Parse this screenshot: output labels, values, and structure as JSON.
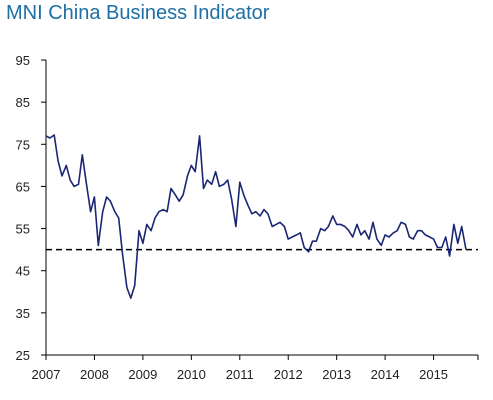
{
  "title": "MNI China Business Indicator",
  "colors": {
    "title": "#1d6fa5",
    "series": "#1a2673",
    "reference_line": "#000000",
    "axis": "#000000",
    "text": "#222222"
  },
  "chart_data": {
    "type": "line",
    "title": "MNI China Business Indicator",
    "xlabel": "",
    "ylabel": "",
    "grid": false,
    "legend": "none",
    "xlim": [
      2007.0,
      2015.917
    ],
    "ylim": [
      25,
      95
    ],
    "y_ticks": [
      25,
      35,
      45,
      55,
      65,
      75,
      85,
      95
    ],
    "x_ticks": [
      "2007",
      "2008",
      "2009",
      "2010",
      "2011",
      "2012",
      "2013",
      "2014",
      "2015"
    ],
    "reference_line": {
      "y": 50,
      "style": "dashed"
    },
    "series": [
      {
        "values": [
          [
            2007.0,
            77.0
          ],
          [
            2007.08,
            76.5
          ],
          [
            2007.17,
            77.2
          ],
          [
            2007.25,
            71.0
          ],
          [
            2007.33,
            67.5
          ],
          [
            2007.42,
            70.0
          ],
          [
            2007.5,
            66.5
          ],
          [
            2007.58,
            65.0
          ],
          [
            2007.67,
            65.5
          ],
          [
            2007.75,
            72.5
          ],
          [
            2007.83,
            66.0
          ],
          [
            2007.92,
            59.0
          ],
          [
            2008.0,
            62.5
          ],
          [
            2008.08,
            51.0
          ],
          [
            2008.17,
            59.0
          ],
          [
            2008.25,
            62.5
          ],
          [
            2008.33,
            61.5
          ],
          [
            2008.42,
            59.0
          ],
          [
            2008.5,
            57.5
          ],
          [
            2008.58,
            49.0
          ],
          [
            2008.67,
            41.0
          ],
          [
            2008.75,
            38.5
          ],
          [
            2008.83,
            41.5
          ],
          [
            2008.92,
            54.5
          ],
          [
            2009.0,
            51.5
          ],
          [
            2009.08,
            56.0
          ],
          [
            2009.17,
            54.5
          ],
          [
            2009.25,
            57.5
          ],
          [
            2009.33,
            59.0
          ],
          [
            2009.42,
            59.5
          ],
          [
            2009.5,
            59.0
          ],
          [
            2009.58,
            64.5
          ],
          [
            2009.67,
            63.0
          ],
          [
            2009.75,
            61.5
          ],
          [
            2009.83,
            63.0
          ],
          [
            2009.92,
            67.5
          ],
          [
            2010.0,
            70.0
          ],
          [
            2010.08,
            68.5
          ],
          [
            2010.17,
            77.0
          ],
          [
            2010.25,
            64.5
          ],
          [
            2010.33,
            66.5
          ],
          [
            2010.42,
            65.5
          ],
          [
            2010.5,
            68.5
          ],
          [
            2010.58,
            65.0
          ],
          [
            2010.67,
            65.5
          ],
          [
            2010.75,
            66.5
          ],
          [
            2010.83,
            62.0
          ],
          [
            2010.92,
            55.5
          ],
          [
            2011.0,
            66.0
          ],
          [
            2011.08,
            63.0
          ],
          [
            2011.17,
            60.5
          ],
          [
            2011.25,
            58.5
          ],
          [
            2011.33,
            59.0
          ],
          [
            2011.42,
            58.0
          ],
          [
            2011.5,
            59.5
          ],
          [
            2011.58,
            58.5
          ],
          [
            2011.67,
            55.5
          ],
          [
            2011.75,
            56.0
          ],
          [
            2011.83,
            56.5
          ],
          [
            2011.92,
            55.5
          ],
          [
            2012.0,
            52.5
          ],
          [
            2012.08,
            53.0
          ],
          [
            2012.17,
            53.5
          ],
          [
            2012.25,
            54.0
          ],
          [
            2012.33,
            50.5
          ],
          [
            2012.42,
            49.5
          ],
          [
            2012.5,
            52.0
          ],
          [
            2012.58,
            52.0
          ],
          [
            2012.67,
            55.0
          ],
          [
            2012.75,
            54.5
          ],
          [
            2012.83,
            55.5
          ],
          [
            2012.92,
            58.0
          ],
          [
            2013.0,
            56.0
          ],
          [
            2013.08,
            56.0
          ],
          [
            2013.17,
            55.5
          ],
          [
            2013.25,
            54.5
          ],
          [
            2013.33,
            53.0
          ],
          [
            2013.42,
            56.0
          ],
          [
            2013.5,
            53.5
          ],
          [
            2013.58,
            54.5
          ],
          [
            2013.67,
            52.5
          ],
          [
            2013.75,
            56.5
          ],
          [
            2013.83,
            52.5
          ],
          [
            2013.92,
            51.0
          ],
          [
            2014.0,
            53.5
          ],
          [
            2014.08,
            53.0
          ],
          [
            2014.17,
            54.0
          ],
          [
            2014.25,
            54.5
          ],
          [
            2014.33,
            56.5
          ],
          [
            2014.42,
            56.0
          ],
          [
            2014.5,
            53.0
          ],
          [
            2014.58,
            52.5
          ],
          [
            2014.67,
            54.5
          ],
          [
            2014.75,
            54.5
          ],
          [
            2014.83,
            53.5
          ],
          [
            2014.92,
            53.0
          ],
          [
            2015.0,
            52.5
          ],
          [
            2015.08,
            50.5
          ],
          [
            2015.17,
            50.5
          ],
          [
            2015.25,
            53.0
          ],
          [
            2015.33,
            48.5
          ],
          [
            2015.42,
            56.0
          ],
          [
            2015.5,
            51.5
          ],
          [
            2015.58,
            55.5
          ],
          [
            2015.67,
            50.0
          ]
        ]
      }
    ]
  }
}
